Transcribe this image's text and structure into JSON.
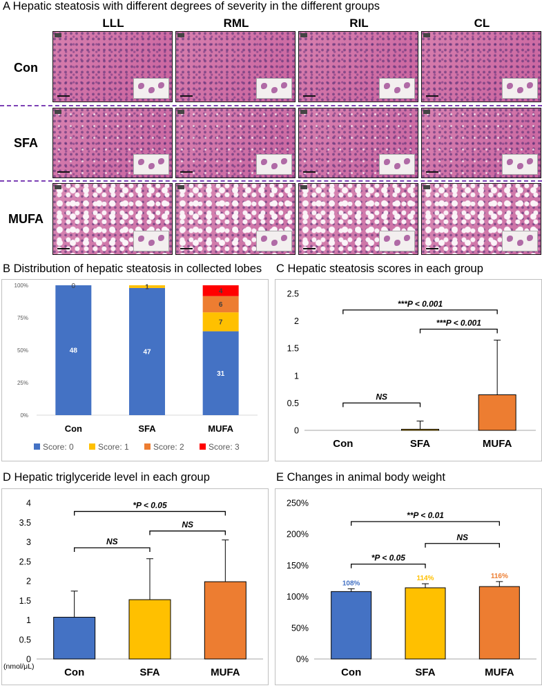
{
  "panel_a": {
    "title": "A Hepatic steatosis with different degrees of severity in the different groups",
    "columns": [
      "LLL",
      "RML",
      "RIL",
      "CL"
    ],
    "rows": [
      "Con",
      "SFA",
      "MUFA"
    ]
  },
  "chart_data": [
    {
      "id": "B",
      "type": "bar",
      "stacked": true,
      "percent": true,
      "title": "B  Distribution of hepatic steatosis in collected lobes",
      "categories": [
        "Con",
        "SFA",
        "MUFA"
      ],
      "series": [
        {
          "name": "Score: 0",
          "color": "#4472c4",
          "values": [
            48,
            47,
            31
          ]
        },
        {
          "name": "Score: 1",
          "color": "#ffc000",
          "values": [
            0,
            1,
            7
          ]
        },
        {
          "name": "Score: 2",
          "color": "#ed7d31",
          "values": [
            0,
            0,
            6
          ]
        },
        {
          "name": "Score: 3",
          "color": "#ff0000",
          "values": [
            0,
            0,
            4
          ]
        }
      ],
      "extra_labels": [
        {
          "category": "Con",
          "text": "0"
        }
      ],
      "yticks": [
        "0%",
        "25%",
        "50%",
        "75%",
        "100%"
      ],
      "ylim": [
        0,
        100
      ],
      "legend": "bottom"
    },
    {
      "id": "C",
      "type": "bar",
      "title": "C  Hepatic steatosis scores in each group",
      "categories": [
        "Con",
        "SFA",
        "MUFA"
      ],
      "values": [
        0,
        0.02,
        0.65
      ],
      "errors": [
        0,
        0.15,
        1.0
      ],
      "colors": [
        "#4472c4",
        "#ffc000",
        "#ed7d31"
      ],
      "ylim": [
        0,
        2.5
      ],
      "yticks": [
        "0",
        "0.5",
        "1",
        "1.5",
        "2",
        "2.5"
      ],
      "yticks_values": [
        0,
        0.5,
        1,
        1.5,
        2,
        2.5
      ],
      "annotations": [
        {
          "from": 0,
          "to": 2,
          "level": 2.2,
          "text": "***P < 0.001"
        },
        {
          "from": 1,
          "to": 2,
          "level": 1.85,
          "text": "***P < 0.001"
        },
        {
          "from": 0,
          "to": 1,
          "level": 0.5,
          "text": "NS"
        }
      ]
    },
    {
      "id": "D",
      "type": "bar",
      "title": "D  Hepatic triglyceride level in each group",
      "categories": [
        "Con",
        "SFA",
        "MUFA"
      ],
      "values": [
        1.07,
        1.52,
        1.98
      ],
      "errors": [
        0.67,
        1.05,
        1.07
      ],
      "colors": [
        "#4472c4",
        "#ffc000",
        "#ed7d31"
      ],
      "ylim": [
        0,
        4
      ],
      "ylabel": "(nmol/μL)",
      "yticks": [
        "0",
        "0.5",
        "1",
        "1.5",
        "2",
        "2.5",
        "3",
        "3.5",
        "4"
      ],
      "yticks_values": [
        0,
        0.5,
        1,
        1.5,
        2,
        2.5,
        3,
        3.5,
        4
      ],
      "annotations": [
        {
          "from": 0,
          "to": 2,
          "level": 3.78,
          "text": "*P < 0.05"
        },
        {
          "from": 1,
          "to": 2,
          "level": 3.28,
          "text": "NS"
        },
        {
          "from": 0,
          "to": 1,
          "level": 2.85,
          "text": "NS"
        }
      ]
    },
    {
      "id": "E",
      "type": "bar",
      "title": "E  Changes in animal body weight",
      "categories": [
        "Con",
        "SFA",
        "MUFA"
      ],
      "values": [
        108,
        114,
        116
      ],
      "errors": [
        4.5,
        6.5,
        8
      ],
      "data_labels": [
        "108%",
        "114%",
        "116%"
      ],
      "label_colors": [
        "#4472c4",
        "#ffc000",
        "#ed7d31"
      ],
      "colors": [
        "#4472c4",
        "#ffc000",
        "#ed7d31"
      ],
      "ylim": [
        0,
        250
      ],
      "yticks": [
        "0%",
        "50%",
        "100%",
        "150%",
        "200%",
        "250%"
      ],
      "yticks_values": [
        0,
        50,
        100,
        150,
        200,
        250
      ],
      "annotations": [
        {
          "from": 0,
          "to": 2,
          "level": 220,
          "text": "**P < 0.01"
        },
        {
          "from": 1,
          "to": 2,
          "level": 185,
          "text": "NS"
        },
        {
          "from": 0,
          "to": 1,
          "level": 152,
          "text": "*P < 0.05"
        }
      ]
    }
  ]
}
